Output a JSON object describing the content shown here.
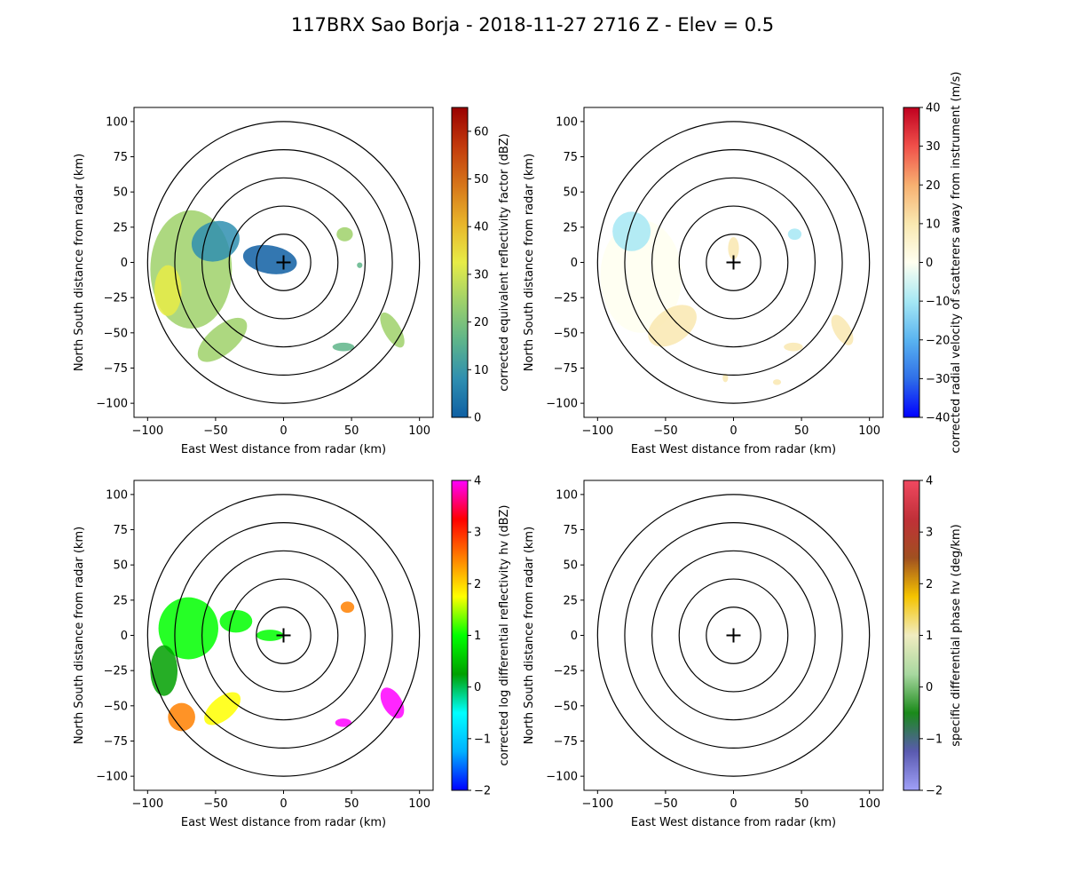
{
  "title": "117BRX Sao Borja - 2018-11-27 2716 Z -  Elev = 0.5",
  "chart_data": [
    {
      "type": "ppi",
      "panel": "top-left",
      "xlabel": "East West distance from radar (km)",
      "ylabel": "North South distance from radar (km)",
      "xlim": [
        -110,
        110
      ],
      "ylim": [
        -110,
        110
      ],
      "xticks": [
        -100,
        -50,
        0,
        50,
        100
      ],
      "yticks": [
        -100,
        -75,
        -50,
        -25,
        0,
        25,
        50,
        75,
        100
      ],
      "range_rings_km": [
        20,
        40,
        60,
        80,
        100
      ],
      "colorbar": {
        "label": "corrected equivalent reflectivity factor (dBZ)",
        "min": 0,
        "max": 65,
        "ticks": [
          0,
          10,
          20,
          30,
          40,
          50,
          60
        ],
        "colors": [
          "#0f5fa3",
          "#2f8fb0",
          "#5fb58a",
          "#9fd16a",
          "#e7ec47",
          "#e8b52a",
          "#d6751a",
          "#c23a0c",
          "#9a0000"
        ]
      },
      "echoes": [
        {
          "x": -68,
          "y": -5,
          "rx": 30,
          "ry": 42,
          "rot": 0,
          "value": 22
        },
        {
          "x": -50,
          "y": 15,
          "rx": 18,
          "ry": 14,
          "rot": 20,
          "value": 14
        },
        {
          "x": -45,
          "y": -55,
          "rx": 22,
          "ry": 10,
          "rot": 40,
          "value": 26
        },
        {
          "x": -85,
          "y": -20,
          "rx": 10,
          "ry": 18,
          "rot": 0,
          "value": 30
        },
        {
          "x": -10,
          "y": 2,
          "rx": 20,
          "ry": 10,
          "rot": -10,
          "value": 6
        },
        {
          "x": 45,
          "y": 20,
          "rx": 6,
          "ry": 5,
          "rot": 0,
          "value": 22
        },
        {
          "x": 80,
          "y": -48,
          "rx": 6,
          "ry": 14,
          "rot": 30,
          "value": 24
        },
        {
          "x": 44,
          "y": -60,
          "rx": 8,
          "ry": 3,
          "rot": 0,
          "value": 18
        },
        {
          "x": 56,
          "y": -2,
          "rx": 2,
          "ry": 2,
          "rot": 0,
          "value": 15
        }
      ]
    },
    {
      "type": "ppi",
      "panel": "top-right",
      "xlabel": "East West distance from radar (km)",
      "ylabel": "North South distance from radar (km)",
      "xlim": [
        -110,
        110
      ],
      "ylim": [
        -110,
        110
      ],
      "xticks": [
        -100,
        -50,
        0,
        50,
        100
      ],
      "yticks": [
        -100,
        -75,
        -50,
        -25,
        0,
        25,
        50,
        75,
        100
      ],
      "range_rings_km": [
        20,
        40,
        60,
        80,
        100
      ],
      "colorbar": {
        "label": "corrected radial velocity of scatterers away from instrument (m/s)",
        "min": -40,
        "max": 40,
        "ticks": [
          -40,
          -30,
          -20,
          -10,
          0,
          10,
          20,
          30,
          40
        ],
        "colors": [
          "#0000ff",
          "#2f6fe8",
          "#5ab4f0",
          "#a6e8f4",
          "#fffff0",
          "#f9e8b0",
          "#f7b070",
          "#f0504a",
          "#c00020"
        ]
      },
      "echoes": [
        {
          "x": -68,
          "y": -10,
          "rx": 30,
          "ry": 40,
          "rot": 0,
          "value": 3
        },
        {
          "x": -75,
          "y": 22,
          "rx": 14,
          "ry": 14,
          "rot": 0,
          "value": -7
        },
        {
          "x": -45,
          "y": -45,
          "rx": 20,
          "ry": 12,
          "rot": 35,
          "value": 5
        },
        {
          "x": 0,
          "y": 10,
          "rx": 4,
          "ry": 8,
          "rot": 0,
          "value": 5
        },
        {
          "x": 45,
          "y": 20,
          "rx": 5,
          "ry": 4,
          "rot": 0,
          "value": -8
        },
        {
          "x": 80,
          "y": -48,
          "rx": 6,
          "ry": 12,
          "rot": 30,
          "value": 9
        },
        {
          "x": 44,
          "y": -60,
          "rx": 7,
          "ry": 3,
          "rot": 0,
          "value": 8
        },
        {
          "x": 32,
          "y": -85,
          "rx": 3,
          "ry": 2,
          "rot": 0,
          "value": 6
        },
        {
          "x": -6,
          "y": -82,
          "rx": 2,
          "ry": 3,
          "rot": 0,
          "value": 7
        }
      ]
    },
    {
      "type": "ppi",
      "panel": "bottom-left",
      "xlabel": "East West distance from radar (km)",
      "ylabel": "North South distance from radar (km)",
      "xlim": [
        -110,
        110
      ],
      "ylim": [
        -110,
        110
      ],
      "xticks": [
        -100,
        -50,
        0,
        50,
        100
      ],
      "yticks": [
        -100,
        -75,
        -50,
        -25,
        0,
        25,
        50,
        75,
        100
      ],
      "range_rings_km": [
        20,
        40,
        60,
        80,
        100
      ],
      "colorbar": {
        "label": "corrected log differential reflectivity hv (dBZ)",
        "min": -2,
        "max": 4,
        "ticks": [
          -2,
          -1,
          0,
          1,
          2,
          3,
          4
        ],
        "colors": [
          "#0000ff",
          "#00b0ff",
          "#00ffff",
          "#00a000",
          "#00ff00",
          "#ffff00",
          "#ff8000",
          "#ff0000",
          "#ff00ff"
        ]
      },
      "echoes": [
        {
          "x": -70,
          "y": 5,
          "rx": 22,
          "ry": 22,
          "rot": 0,
          "value": 1.3
        },
        {
          "x": -88,
          "y": -25,
          "rx": 10,
          "ry": 18,
          "rot": 0,
          "value": 0.3
        },
        {
          "x": -75,
          "y": -58,
          "rx": 10,
          "ry": 10,
          "rot": 0,
          "value": 2.2
        },
        {
          "x": -45,
          "y": -52,
          "rx": 16,
          "ry": 8,
          "rot": 40,
          "value": 1.6
        },
        {
          "x": -35,
          "y": 10,
          "rx": 12,
          "ry": 8,
          "rot": 0,
          "value": 1.1
        },
        {
          "x": -10,
          "y": 0,
          "rx": 10,
          "ry": 4,
          "rot": 0,
          "value": 0.8
        },
        {
          "x": 47,
          "y": 20,
          "rx": 5,
          "ry": 4,
          "rot": 0,
          "value": 2.4
        },
        {
          "x": 80,
          "y": -48,
          "rx": 7,
          "ry": 12,
          "rot": 30,
          "value": 3.8
        },
        {
          "x": 44,
          "y": -62,
          "rx": 6,
          "ry": 3,
          "rot": 0,
          "value": 3.7
        }
      ]
    },
    {
      "type": "ppi",
      "panel": "bottom-right",
      "xlabel": "East West distance from radar (km)",
      "ylabel": "North South distance from radar (km)",
      "xlim": [
        -110,
        110
      ],
      "ylim": [
        -110,
        110
      ],
      "xticks": [
        -100,
        -50,
        0,
        50,
        100
      ],
      "yticks": [
        -100,
        -75,
        -50,
        -25,
        0,
        25,
        50,
        75,
        100
      ],
      "range_rings_km": [
        20,
        40,
        60,
        80,
        100
      ],
      "colorbar": {
        "label": "specific differential phase hv (deg/km)",
        "min": -2,
        "max": 4,
        "ticks": [
          -2,
          -1,
          0,
          1,
          2,
          3,
          4
        ],
        "colors": [
          "#a0a0f8",
          "#5a5ab0",
          "#1a8a1a",
          "#a8d8a0",
          "#f0ecc0",
          "#f5c400",
          "#a05020",
          "#c03038",
          "#f04860"
        ]
      },
      "echoes": []
    }
  ]
}
